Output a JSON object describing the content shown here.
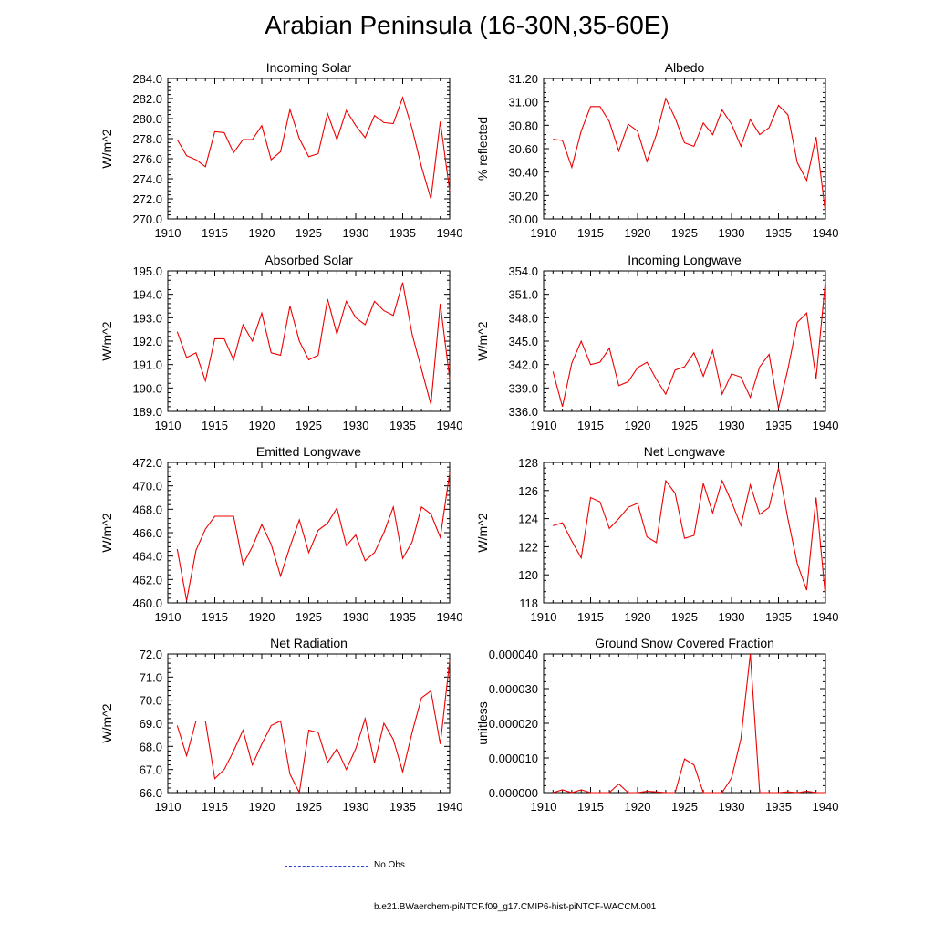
{
  "figure": {
    "title": "Arabian Peninsula (16-30N,35-60E)"
  },
  "legend": {
    "entries": [
      {
        "label": "No Obs",
        "color": "#3344cc",
        "dash": true
      },
      {
        "label": "b.e21.BWaerchem-piNTCF.f09_g17.CMIP6-hist-piNTCF-WACCM.001",
        "color": "#ee0000",
        "dash": false
      }
    ]
  },
  "colors": {
    "series": "#ee0000",
    "axes": "#000000"
  },
  "chart_data": [
    {
      "type": "line",
      "title": "Incoming Solar",
      "ylabel": "W/m^2",
      "xlabel": "",
      "xlim": [
        1910,
        1940
      ],
      "ylim": [
        270.0,
        284.0
      ],
      "xticks": [
        "1910",
        "1915",
        "1920",
        "1925",
        "1930",
        "1935",
        "1940"
      ],
      "yticks": [
        "270.0",
        "272.0",
        "274.0",
        "276.0",
        "278.0",
        "280.0",
        "282.0",
        "284.0"
      ],
      "x": [
        1911,
        1912,
        1913,
        1914,
        1915,
        1916,
        1917,
        1918,
        1919,
        1920,
        1921,
        1922,
        1923,
        1924,
        1925,
        1926,
        1927,
        1928,
        1929,
        1930,
        1931,
        1932,
        1933,
        1934,
        1935,
        1936,
        1937,
        1938,
        1939,
        1940
      ],
      "values": [
        277.9,
        276.3,
        275.9,
        275.2,
        278.7,
        278.6,
        276.6,
        277.9,
        277.9,
        279.3,
        275.9,
        276.7,
        280.9,
        278.0,
        276.2,
        276.5,
        280.5,
        277.9,
        280.8,
        279.3,
        278.1,
        280.3,
        279.6,
        279.5,
        282.1,
        279.0,
        275.2,
        272.0,
        279.7,
        272.8
      ]
    },
    {
      "type": "line",
      "title": "Albedo",
      "ylabel": "% reflected",
      "xlabel": "",
      "xlim": [
        1910,
        1940
      ],
      "ylim": [
        30.0,
        31.2
      ],
      "xticks": [
        "1910",
        "1915",
        "1920",
        "1925",
        "1930",
        "1935",
        "1940"
      ],
      "yticks": [
        "30.00",
        "30.20",
        "30.40",
        "30.60",
        "30.80",
        "31.00",
        "31.20"
      ],
      "x": [
        1911,
        1912,
        1913,
        1914,
        1915,
        1916,
        1917,
        1918,
        1919,
        1920,
        1921,
        1922,
        1923,
        1924,
        1925,
        1926,
        1927,
        1928,
        1929,
        1930,
        1931,
        1932,
        1933,
        1934,
        1935,
        1936,
        1937,
        1938,
        1939,
        1940
      ],
      "values": [
        30.68,
        30.67,
        30.44,
        30.75,
        30.96,
        30.96,
        30.83,
        30.58,
        30.81,
        30.75,
        30.49,
        30.72,
        31.03,
        30.86,
        30.65,
        30.62,
        30.82,
        30.72,
        30.93,
        30.81,
        30.62,
        30.85,
        30.72,
        30.78,
        30.97,
        30.89,
        30.48,
        30.33,
        30.7,
        30.05
      ]
    },
    {
      "type": "line",
      "title": "Absorbed Solar",
      "ylabel": "W/m^2",
      "xlabel": "",
      "xlim": [
        1910,
        1940
      ],
      "ylim": [
        189.0,
        195.0
      ],
      "xticks": [
        "1910",
        "1915",
        "1920",
        "1925",
        "1930",
        "1935",
        "1940"
      ],
      "yticks": [
        "189.0",
        "190.0",
        "191.0",
        "192.0",
        "193.0",
        "194.0",
        "195.0"
      ],
      "x": [
        1911,
        1912,
        1913,
        1914,
        1915,
        1916,
        1917,
        1918,
        1919,
        1920,
        1921,
        1922,
        1923,
        1924,
        1925,
        1926,
        1927,
        1928,
        1929,
        1930,
        1931,
        1932,
        1933,
        1934,
        1935,
        1936,
        1937,
        1938,
        1939,
        1940
      ],
      "values": [
        192.4,
        191.3,
        191.5,
        190.3,
        192.1,
        192.1,
        191.2,
        192.7,
        192.0,
        193.2,
        191.5,
        191.4,
        193.5,
        192.0,
        191.2,
        191.4,
        193.8,
        192.3,
        193.7,
        193.0,
        192.7,
        193.7,
        193.3,
        193.1,
        194.5,
        192.3,
        190.8,
        189.3,
        193.6,
        190.4
      ]
    },
    {
      "type": "line",
      "title": "Incoming Longwave",
      "ylabel": "W/m^2",
      "xlabel": "",
      "xlim": [
        1910,
        1940
      ],
      "ylim": [
        336.0,
        354.0
      ],
      "xticks": [
        "1910",
        "1915",
        "1920",
        "1925",
        "1930",
        "1935",
        "1940"
      ],
      "yticks": [
        "336.0",
        "339.0",
        "342.0",
        "345.0",
        "348.0",
        "351.0",
        "354.0"
      ],
      "x": [
        1911,
        1912,
        1913,
        1914,
        1915,
        1916,
        1917,
        1918,
        1919,
        1920,
        1921,
        1922,
        1923,
        1924,
        1925,
        1926,
        1927,
        1928,
        1929,
        1930,
        1931,
        1932,
        1933,
        1934,
        1935,
        1936,
        1937,
        1938,
        1939,
        1940
      ],
      "values": [
        341.1,
        336.6,
        342.2,
        345.0,
        342.0,
        342.3,
        344.1,
        339.3,
        339.8,
        341.6,
        342.3,
        340.1,
        338.2,
        341.3,
        341.7,
        343.5,
        340.5,
        343.8,
        338.2,
        340.8,
        340.4,
        337.8,
        341.7,
        343.3,
        336.4,
        341.4,
        347.4,
        348.6,
        340.2,
        352.8
      ]
    },
    {
      "type": "line",
      "title": "Emitted Longwave",
      "ylabel": "W/m^2",
      "xlabel": "",
      "xlim": [
        1910,
        1940
      ],
      "ylim": [
        460.0,
        472.0
      ],
      "xticks": [
        "1910",
        "1915",
        "1920",
        "1925",
        "1930",
        "1935",
        "1940"
      ],
      "yticks": [
        "460.0",
        "462.0",
        "464.0",
        "466.0",
        "468.0",
        "470.0",
        "472.0"
      ],
      "x": [
        1911,
        1912,
        1913,
        1914,
        1915,
        1916,
        1917,
        1918,
        1919,
        1920,
        1921,
        1922,
        1923,
        1924,
        1925,
        1926,
        1927,
        1928,
        1929,
        1930,
        1931,
        1932,
        1933,
        1934,
        1935,
        1936,
        1937,
        1938,
        1939,
        1940
      ],
      "values": [
        464.6,
        460.2,
        464.5,
        466.3,
        467.4,
        467.4,
        467.4,
        463.3,
        464.8,
        466.7,
        465.0,
        462.3,
        464.8,
        467.1,
        464.3,
        466.2,
        466.8,
        468.1,
        464.9,
        465.8,
        463.6,
        464.3,
        466.0,
        468.2,
        463.8,
        465.2,
        468.2,
        467.6,
        465.6,
        471.1
      ]
    },
    {
      "type": "line",
      "title": "Net Longwave",
      "ylabel": "W/m^2",
      "xlabel": "",
      "xlim": [
        1910,
        1940
      ],
      "ylim": [
        118,
        128
      ],
      "xticks": [
        "1910",
        "1915",
        "1920",
        "1925",
        "1930",
        "1935",
        "1940"
      ],
      "yticks": [
        "118",
        "120",
        "122",
        "124",
        "126",
        "128"
      ],
      "x": [
        1911,
        1912,
        1913,
        1914,
        1915,
        1916,
        1917,
        1918,
        1919,
        1920,
        1921,
        1922,
        1923,
        1924,
        1925,
        1926,
        1927,
        1928,
        1929,
        1930,
        1931,
        1932,
        1933,
        1934,
        1935,
        1936,
        1937,
        1938,
        1939,
        1940
      ],
      "values": [
        123.5,
        123.7,
        122.4,
        121.2,
        125.5,
        125.2,
        123.3,
        124.0,
        124.8,
        125.1,
        122.7,
        122.3,
        126.7,
        125.8,
        122.6,
        122.8,
        126.5,
        124.4,
        126.7,
        125.2,
        123.5,
        126.4,
        124.3,
        124.8,
        127.6,
        124.0,
        120.8,
        118.9,
        125.5,
        118.4
      ]
    },
    {
      "type": "line",
      "title": "Net Radiation",
      "ylabel": "W/m^2",
      "xlabel": "",
      "xlim": [
        1910,
        1940
      ],
      "ylim": [
        66.0,
        72.0
      ],
      "xticks": [
        "1910",
        "1915",
        "1920",
        "1925",
        "1930",
        "1935",
        "1940"
      ],
      "yticks": [
        "66.0",
        "67.0",
        "68.0",
        "69.0",
        "70.0",
        "71.0",
        "72.0"
      ],
      "x": [
        1911,
        1912,
        1913,
        1914,
        1915,
        1916,
        1917,
        1918,
        1919,
        1920,
        1921,
        1922,
        1923,
        1924,
        1925,
        1926,
        1927,
        1928,
        1929,
        1930,
        1931,
        1932,
        1933,
        1934,
        1935,
        1936,
        1937,
        1938,
        1939,
        1940
      ],
      "values": [
        68.9,
        67.6,
        69.1,
        69.1,
        66.6,
        67.0,
        67.8,
        68.7,
        67.2,
        68.1,
        68.9,
        69.1,
        66.8,
        66.0,
        68.7,
        68.6,
        67.3,
        67.9,
        67.0,
        67.9,
        69.2,
        67.3,
        69.0,
        68.3,
        66.9,
        68.6,
        70.1,
        70.4,
        68.1,
        71.7
      ]
    },
    {
      "type": "line",
      "title": "Ground Snow Covered Fraction",
      "ylabel": "unitless",
      "xlabel": "",
      "xlim": [
        1910,
        1940
      ],
      "ylim": [
        0.0,
        4e-05
      ],
      "xticks": [
        "1910",
        "1915",
        "1920",
        "1925",
        "1930",
        "1935",
        "1940"
      ],
      "yticks": [
        "0.000000",
        "0.000010",
        "0.000020",
        "0.000030",
        "0.000040"
      ],
      "x": [
        1911,
        1912,
        1913,
        1914,
        1915,
        1916,
        1917,
        1918,
        1919,
        1920,
        1921,
        1922,
        1923,
        1924,
        1925,
        1926,
        1927,
        1928,
        1929,
        1930,
        1931,
        1932,
        1933,
        1934,
        1935,
        1936,
        1937,
        1938,
        1939,
        1940
      ],
      "values": [
        0.0,
        8e-07,
        0.0,
        8e-07,
        0.0,
        0.0,
        0.0,
        2.5e-06,
        0.0,
        0.0,
        4e-07,
        2e-07,
        0.0,
        0.0,
        9.7e-06,
        8e-06,
        0.0,
        0.0,
        0.0,
        4.2e-06,
        1.55e-05,
        4e-05,
        0.0,
        0.0,
        0.0,
        2e-07,
        0.0,
        4e-07,
        0.0,
        0.0
      ]
    }
  ]
}
